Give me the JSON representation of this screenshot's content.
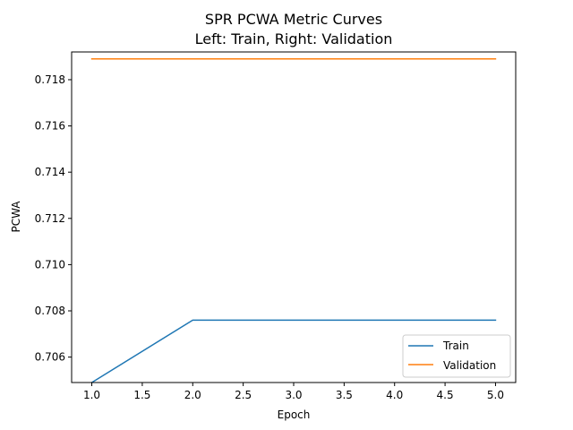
{
  "chart_data": {
    "type": "line",
    "title": "SPR PCWA Metric Curves",
    "subtitle": "Left: Train, Right: Validation",
    "xlabel": "Epoch",
    "ylabel": "PCWA",
    "x": [
      1.0,
      2.0,
      3.0,
      4.0,
      5.0
    ],
    "xlim": [
      0.8,
      5.2
    ],
    "ylim": [
      0.7049,
      0.7192
    ],
    "xticks": [
      1.0,
      1.5,
      2.0,
      2.5,
      3.0,
      3.5,
      4.0,
      4.5,
      5.0
    ],
    "xtick_labels": [
      "1.0",
      "1.5",
      "2.0",
      "2.5",
      "3.0",
      "3.5",
      "4.0",
      "4.5",
      "5.0"
    ],
    "yticks": [
      0.706,
      0.708,
      0.71,
      0.712,
      0.714,
      0.716,
      0.718
    ],
    "ytick_labels": [
      "0.706",
      "0.708",
      "0.710",
      "0.712",
      "0.714",
      "0.716",
      "0.718"
    ],
    "series": [
      {
        "name": "Train",
        "color": "#1f77b4",
        "values": [
          0.7049,
          0.7076,
          0.7076,
          0.7076,
          0.7076
        ]
      },
      {
        "name": "Validation",
        "color": "#ff7f0e",
        "values": [
          0.7189,
          0.7189,
          0.7189,
          0.7189,
          0.7189
        ]
      }
    ],
    "grid": false,
    "legend_position": "lower-right"
  }
}
